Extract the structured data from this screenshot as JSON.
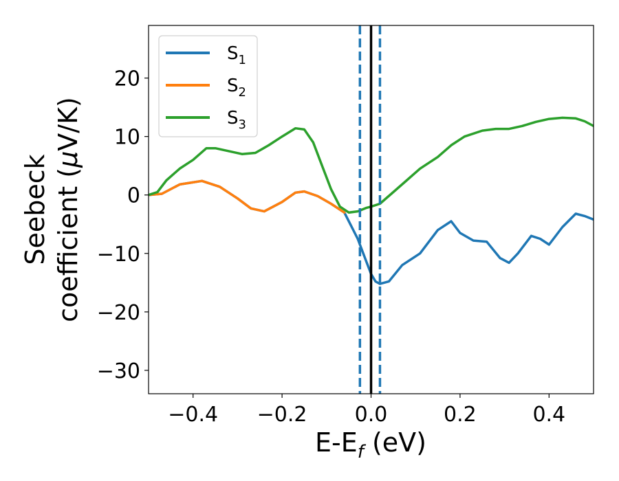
{
  "chart_data": {
    "type": "line",
    "xlabel": "E-E",
    "xlabel_sub": "f",
    "xlabel_unit": " (eV)",
    "ylabel_line1": "Seebeck",
    "ylabel_line2": "coefficient  (",
    "ylabel_mu": "μ",
    "ylabel_unit": "V/K)",
    "xlim": [
      -0.5,
      0.5
    ],
    "ylim": [
      -34,
      29
    ],
    "xticks": [
      -0.4,
      -0.2,
      0.0,
      0.2,
      0.4
    ],
    "xtick_labels": [
      "−0.4",
      "−0.2",
      "0.0",
      "0.2",
      "0.4"
    ],
    "yticks": [
      -30,
      -20,
      -10,
      0,
      10,
      20
    ],
    "ytick_labels": [
      "−30",
      "−20",
      "−10",
      "0",
      "10",
      "20"
    ],
    "grid": false,
    "legend_position": "top-left",
    "vlines": [
      {
        "x": 0.0,
        "color": "#000000",
        "style": "solid"
      },
      {
        "x": -0.025,
        "color": "#1f77b4",
        "style": "dashed"
      },
      {
        "x": 0.02,
        "color": "#1f77b4",
        "style": "dashed"
      }
    ],
    "series": [
      {
        "name": "S",
        "name_sub": "1",
        "color": "#1f77b4",
        "x": [
          -0.5,
          -0.47,
          -0.43,
          -0.38,
          -0.34,
          -0.3,
          -0.27,
          -0.24,
          -0.2,
          -0.17,
          -0.15,
          -0.12,
          -0.09,
          -0.06,
          -0.03,
          -0.01,
          0.0,
          0.01,
          0.02,
          0.04,
          0.07,
          0.11,
          0.15,
          0.18,
          0.2,
          0.23,
          0.26,
          0.29,
          0.31,
          0.33,
          0.36,
          0.38,
          0.4,
          0.43,
          0.46,
          0.48,
          0.5
        ],
        "y": [
          0,
          0.2,
          1.8,
          2.4,
          1.4,
          -0.6,
          -2.3,
          -2.8,
          -1.2,
          0.4,
          0.6,
          -0.2,
          -1.5,
          -3.0,
          -7.5,
          -11.5,
          -13.5,
          -14.8,
          -15.2,
          -14.8,
          -12.0,
          -10.0,
          -6.0,
          -4.5,
          -6.5,
          -7.8,
          -8.0,
          -10.8,
          -11.6,
          -10.0,
          -7.0,
          -7.5,
          -8.5,
          -5.5,
          -3.2,
          -3.6,
          -4.2
        ]
      },
      {
        "name": "S",
        "name_sub": "2",
        "color": "#ff7f0e",
        "x": [
          -0.5,
          -0.47,
          -0.43,
          -0.38,
          -0.34,
          -0.3,
          -0.27,
          -0.24,
          -0.2,
          -0.17,
          -0.15,
          -0.12,
          -0.09,
          -0.06
        ],
        "y": [
          0,
          0.2,
          1.8,
          2.4,
          1.4,
          -0.6,
          -2.3,
          -2.8,
          -1.2,
          0.4,
          0.6,
          -0.2,
          -1.5,
          -3.0
        ]
      },
      {
        "name": "S",
        "name_sub": "3",
        "color": "#2ca02c",
        "x": [
          -0.5,
          -0.48,
          -0.46,
          -0.43,
          -0.4,
          -0.37,
          -0.35,
          -0.32,
          -0.29,
          -0.26,
          -0.23,
          -0.2,
          -0.17,
          -0.15,
          -0.13,
          -0.11,
          -0.09,
          -0.07,
          -0.05,
          -0.03,
          -0.01,
          0.0,
          0.02,
          0.05,
          0.08,
          0.11,
          0.15,
          0.18,
          0.21,
          0.25,
          0.28,
          0.31,
          0.34,
          0.37,
          0.4,
          0.43,
          0.46,
          0.48,
          0.5
        ],
        "y": [
          0,
          0.5,
          2.5,
          4.5,
          6.0,
          8.0,
          8.0,
          7.5,
          7.0,
          7.2,
          8.5,
          10.0,
          11.4,
          11.2,
          9.0,
          5.0,
          1.0,
          -2.0,
          -3.0,
          -2.8,
          -2.2,
          -2.0,
          -1.5,
          0.5,
          2.5,
          4.5,
          6.5,
          8.5,
          10.0,
          11.0,
          11.3,
          11.3,
          11.8,
          12.5,
          13.0,
          13.2,
          13.1,
          12.6,
          11.8
        ]
      }
    ]
  }
}
